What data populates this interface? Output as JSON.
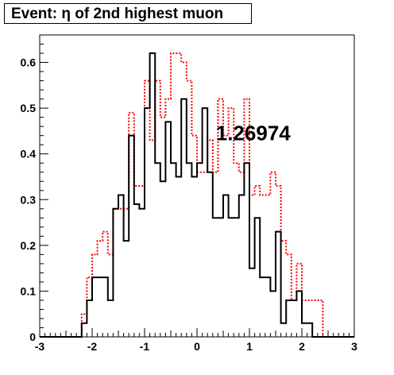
{
  "chart_data": {
    "type": "step-histogram",
    "title": "Event: η of 2nd highest muon",
    "annotation": "1.26974",
    "xlim": [
      -3,
      3
    ],
    "ylim": [
      0,
      0.66
    ],
    "x_ticks": [
      -3,
      -2,
      -1,
      0,
      1,
      2,
      3
    ],
    "x_tick_labels": [
      "-3",
      "-2",
      "-1",
      "0",
      "1",
      "2",
      "3"
    ],
    "y_ticks": [
      0,
      0.1,
      0.2,
      0.3,
      0.4,
      0.5,
      0.6
    ],
    "y_tick_labels": [
      "0",
      "0.1",
      "0.2",
      "0.3",
      "0.4",
      "0.5",
      "0.6"
    ],
    "grid": false,
    "bin_edges": [
      -3.0,
      -2.9,
      -2.8,
      -2.7,
      -2.6,
      -2.5,
      -2.4,
      -2.3,
      -2.2,
      -2.1,
      -2.0,
      -1.9,
      -1.8,
      -1.7,
      -1.6,
      -1.5,
      -1.4,
      -1.3,
      -1.2,
      -1.1,
      -1.0,
      -0.9,
      -0.8,
      -0.7,
      -0.6,
      -0.5,
      -0.4,
      -0.3,
      -0.2,
      -0.1,
      0.0,
      0.1,
      0.2,
      0.3,
      0.4,
      0.5,
      0.6,
      0.7,
      0.8,
      0.9,
      1.0,
      1.1,
      1.2,
      1.3,
      1.4,
      1.5,
      1.6,
      1.7,
      1.8,
      1.9,
      2.0,
      2.1,
      2.2,
      2.3,
      2.4,
      2.5,
      2.6,
      2.7,
      2.8,
      2.9,
      3.0
    ],
    "series": [
      {
        "color": "#000000",
        "style": "solid",
        "values": [
          0,
          0,
          0,
          0,
          0,
          0,
          0,
          0,
          0.03,
          0.08,
          0.13,
          0.13,
          0.13,
          0.08,
          0.28,
          0.31,
          0.21,
          0.44,
          0.29,
          0.28,
          0.5,
          0.62,
          0.38,
          0.34,
          0.47,
          0.38,
          0.35,
          0.52,
          0.38,
          0.35,
          0.38,
          0.5,
          0.36,
          0.26,
          0.26,
          0.31,
          0.26,
          0.26,
          0.31,
          0.38,
          0.15,
          0.26,
          0.13,
          0.13,
          0.1,
          0.23,
          0.03,
          0.08,
          0.08,
          0.1,
          0.03,
          0.03,
          0.0,
          0.0,
          0.0,
          0.0,
          0.0,
          0.0,
          0.0,
          0.0
        ]
      },
      {
        "color": "#ff0000",
        "style": "dotted",
        "values": [
          0,
          0,
          0,
          0,
          0,
          0,
          0,
          0,
          0.05,
          0.13,
          0.18,
          0.21,
          0.23,
          0.18,
          0.28,
          0.28,
          0.28,
          0.49,
          0.33,
          0.33,
          0.56,
          0.43,
          0.56,
          0.48,
          0.52,
          0.62,
          0.62,
          0.6,
          0.56,
          0.44,
          0.36,
          0.36,
          0.43,
          0.36,
          0.52,
          0.44,
          0.5,
          0.38,
          0.36,
          0.52,
          0.31,
          0.33,
          0.31,
          0.31,
          0.36,
          0.33,
          0.21,
          0.18,
          0.08,
          0.16,
          0.08,
          0.08,
          0.08,
          0.08,
          0.0,
          0.0,
          0.0,
          0.0,
          0.0,
          0.0
        ]
      }
    ]
  }
}
